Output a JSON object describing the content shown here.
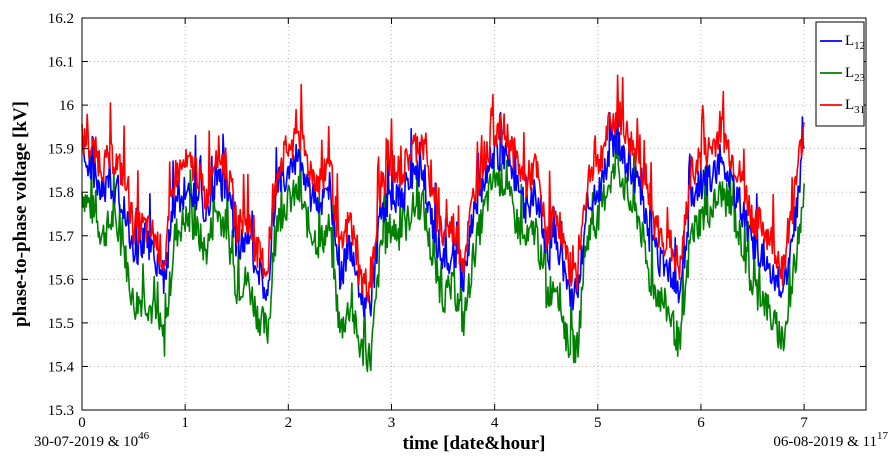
{
  "chart_data": {
    "type": "line",
    "title": "",
    "xlabel": "time [date&hour]",
    "ylabel": "phase-to-phase voltage [kV]",
    "start_label": {
      "text": "30-07-2019 & 10",
      "sup": "46"
    },
    "end_label": {
      "text": "06-08-2019 & 11",
      "sup": "17"
    },
    "xlim": [
      0,
      7.6
    ],
    "ylim": [
      15.3,
      16.2
    ],
    "xticks": [
      0,
      1,
      2,
      3,
      4,
      5,
      6,
      7
    ],
    "yticks": [
      15.3,
      15.4,
      15.5,
      15.6,
      15.7,
      15.8,
      15.9,
      16,
      16.1,
      16.2
    ],
    "ytick_labels": [
      "15.3",
      "15.4",
      "15.5",
      "15.6",
      "15.7",
      "15.8",
      "15.9",
      "16",
      "16.1",
      "16.2"
    ],
    "grid": true,
    "legend_position": "top-right",
    "series": [
      {
        "name": "L",
        "sub": "12",
        "color": "#0000ff"
      },
      {
        "name": "L",
        "sub": "23",
        "color": "#008000"
      },
      {
        "name": "L",
        "sub": "31",
        "color": "#ff0000"
      }
    ],
    "x": [
      0.0,
      0.1,
      0.2,
      0.3,
      0.4,
      0.5,
      0.6,
      0.7,
      0.8,
      0.9,
      1.0,
      1.1,
      1.2,
      1.3,
      1.4,
      1.5,
      1.6,
      1.7,
      1.8,
      1.9,
      2.0,
      2.1,
      2.2,
      2.3,
      2.4,
      2.5,
      2.6,
      2.7,
      2.8,
      2.9,
      3.0,
      3.1,
      3.2,
      3.3,
      3.4,
      3.5,
      3.6,
      3.7,
      3.8,
      3.9,
      4.0,
      4.1,
      4.2,
      4.3,
      4.4,
      4.5,
      4.6,
      4.7,
      4.8,
      4.9,
      5.0,
      5.1,
      5.2,
      5.3,
      5.4,
      5.5,
      5.6,
      5.7,
      5.8,
      5.9,
      6.0,
      6.1,
      6.2,
      6.3,
      6.4,
      6.5,
      6.6,
      6.7,
      6.8,
      6.9,
      7.0
    ],
    "series_values": {
      "L12": [
        15.88,
        15.85,
        15.8,
        15.82,
        15.78,
        15.66,
        15.68,
        15.66,
        15.6,
        15.78,
        15.8,
        15.8,
        15.74,
        15.84,
        15.8,
        15.68,
        15.7,
        15.62,
        15.58,
        15.82,
        15.85,
        15.88,
        15.8,
        15.76,
        15.82,
        15.6,
        15.68,
        15.56,
        15.54,
        15.76,
        15.8,
        15.78,
        15.84,
        15.86,
        15.72,
        15.64,
        15.66,
        15.6,
        15.75,
        15.82,
        15.9,
        15.88,
        15.82,
        15.76,
        15.8,
        15.64,
        15.7,
        15.58,
        15.56,
        15.78,
        15.8,
        15.88,
        15.92,
        15.86,
        15.82,
        15.7,
        15.64,
        15.62,
        15.56,
        15.78,
        15.82,
        15.84,
        15.88,
        15.82,
        15.76,
        15.68,
        15.66,
        15.62,
        15.58,
        15.72,
        15.9
      ],
      "L23": [
        15.8,
        15.76,
        15.7,
        15.74,
        15.68,
        15.54,
        15.56,
        15.52,
        15.46,
        15.7,
        15.74,
        15.72,
        15.66,
        15.76,
        15.72,
        15.58,
        15.6,
        15.52,
        15.48,
        15.74,
        15.78,
        15.8,
        15.72,
        15.68,
        15.72,
        15.48,
        15.54,
        15.44,
        15.42,
        15.68,
        15.72,
        15.7,
        15.76,
        15.78,
        15.64,
        15.56,
        15.58,
        15.5,
        15.66,
        15.76,
        15.84,
        15.82,
        15.74,
        15.68,
        15.72,
        15.56,
        15.6,
        15.46,
        15.44,
        15.7,
        15.74,
        15.82,
        15.86,
        15.78,
        15.74,
        15.6,
        15.56,
        15.52,
        15.44,
        15.7,
        15.74,
        15.76,
        15.8,
        15.76,
        15.68,
        15.58,
        15.56,
        15.5,
        15.46,
        15.6,
        15.82
      ],
      "L31": [
        15.92,
        15.9,
        15.86,
        15.88,
        15.84,
        15.72,
        15.72,
        15.7,
        15.64,
        15.84,
        15.86,
        15.86,
        15.78,
        15.9,
        15.86,
        15.72,
        15.74,
        15.66,
        15.62,
        15.86,
        15.9,
        15.94,
        15.86,
        15.82,
        15.88,
        15.66,
        15.74,
        15.6,
        15.58,
        15.82,
        15.86,
        15.84,
        15.9,
        15.92,
        15.78,
        15.7,
        15.72,
        15.64,
        15.8,
        15.88,
        15.94,
        15.94,
        15.88,
        15.82,
        15.86,
        15.7,
        15.76,
        15.64,
        15.6,
        15.84,
        15.86,
        15.94,
        15.98,
        15.92,
        15.88,
        15.76,
        15.7,
        15.68,
        15.62,
        15.84,
        15.88,
        15.9,
        15.94,
        15.88,
        15.82,
        15.74,
        15.72,
        15.68,
        15.62,
        15.78,
        15.96
      ]
    }
  }
}
